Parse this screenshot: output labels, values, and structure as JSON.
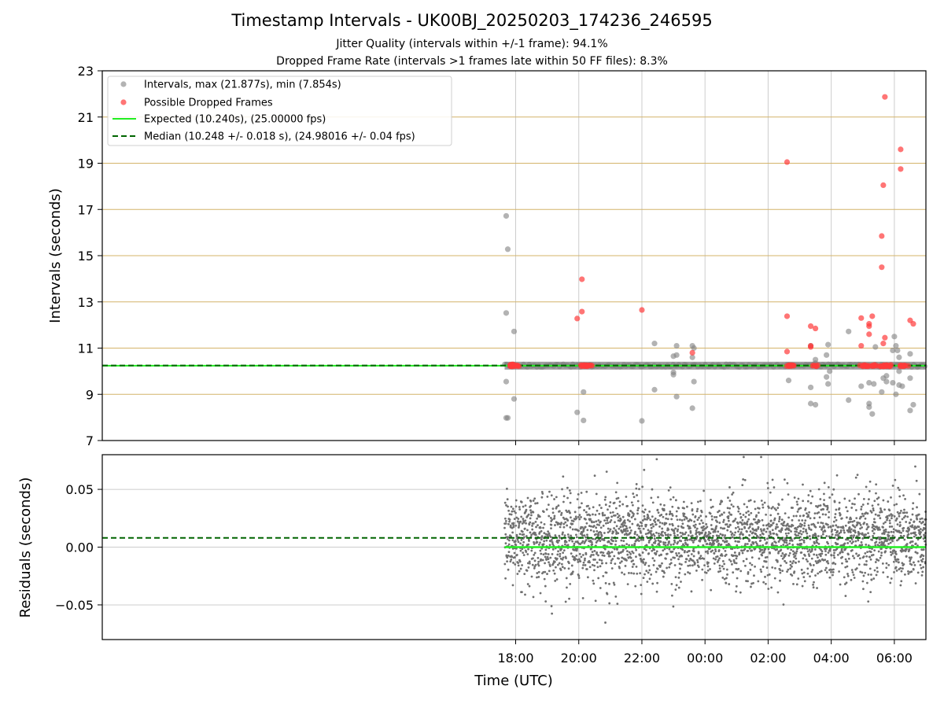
{
  "figure": {
    "title": "Timestamp Intervals - UK00BJ_20250203_174236_246595",
    "subtitle_1": "Jitter Quality (intervals within +/-1 frame): 94.1%",
    "subtitle_2": "Dropped Frame Rate (intervals >1 frames late within 50 FF files): 8.3%"
  },
  "chart_data": [
    {
      "type": "scatter",
      "panel": "intervals",
      "ylabel": "Intervals (seconds)",
      "x_unit": "hours relative to 00:00 UTC (negative = previous evening)",
      "xlim": [
        -19.1,
        7.0
      ],
      "ylim": [
        7,
        23
      ],
      "y_ticks": [
        7,
        9,
        11,
        13,
        15,
        17,
        19,
        21,
        23
      ],
      "grid": true,
      "legend_position": "top-left",
      "colors": {
        "intervals": "#808080",
        "dropped": "#ff3b3b",
        "expected": "#22ee22",
        "median": "#006400",
        "hgrid": "#d4b46a",
        "vgrid": "#cccccc"
      },
      "legend": [
        "Intervals, max (21.877s), min (7.854s)",
        "Possible Dropped Frames",
        "Expected (10.240s), (25.00000 fps)",
        "Median (10.248 +/- 0.018 s), (24.98016 +/- 0.04 fps)"
      ],
      "expected_line": 10.24,
      "median_line": 10.248,
      "baseline_band": {
        "x_start": -6.35,
        "x_end": 7.0,
        "y": 10.24
      },
      "series": [
        {
          "name": "Intervals, max (21.877s), min (7.854s)",
          "points": [
            [
              -6.3,
              16.72
            ],
            [
              -6.25,
              15.28
            ],
            [
              -6.3,
              12.52
            ],
            [
              -6.3,
              9.55
            ],
            [
              -6.3,
              7.98
            ],
            [
              -6.25,
              7.98
            ],
            [
              -6.05,
              11.72
            ],
            [
              -6.05,
              8.8
            ],
            [
              -4.05,
              8.22
            ],
            [
              -3.85,
              9.1
            ],
            [
              -3.85,
              7.87
            ],
            [
              -2.0,
              7.85
            ],
            [
              -1.6,
              11.2
            ],
            [
              -1.6,
              9.2
            ],
            [
              -1.0,
              10.65
            ],
            [
              -1.0,
              9.85
            ],
            [
              -1.0,
              9.95
            ],
            [
              -0.9,
              11.1
            ],
            [
              -0.9,
              10.7
            ],
            [
              -0.9,
              8.9
            ],
            [
              -0.4,
              11.1
            ],
            [
              -0.35,
              11.0
            ],
            [
              -0.4,
              10.6
            ],
            [
              -0.4,
              8.4
            ],
            [
              -0.35,
              9.55
            ],
            [
              2.65,
              9.6
            ],
            [
              3.35,
              9.3
            ],
            [
              3.35,
              8.6
            ],
            [
              3.35,
              11.1
            ],
            [
              3.5,
              8.55
            ],
            [
              3.5,
              10.35
            ],
            [
              3.5,
              10.5
            ],
            [
              3.85,
              10.7
            ],
            [
              3.85,
              9.75
            ],
            [
              3.9,
              11.15
            ],
            [
              3.9,
              9.45
            ],
            [
              3.95,
              10.0
            ],
            [
              4.55,
              11.72
            ],
            [
              4.55,
              8.75
            ],
            [
              4.95,
              9.35
            ],
            [
              5.2,
              9.5
            ],
            [
              5.2,
              8.6
            ],
            [
              5.2,
              8.45
            ],
            [
              5.3,
              8.15
            ],
            [
              5.35,
              9.45
            ],
            [
              5.4,
              11.05
            ],
            [
              5.6,
              9.1
            ],
            [
              5.65,
              9.7
            ],
            [
              5.75,
              9.55
            ],
            [
              5.75,
              9.8
            ],
            [
              5.95,
              10.9
            ],
            [
              5.95,
              9.5
            ],
            [
              6.0,
              11.5
            ],
            [
              6.05,
              11.1
            ],
            [
              6.05,
              9.0
            ],
            [
              6.1,
              10.9
            ],
            [
              6.15,
              10.6
            ],
            [
              6.15,
              10.0
            ],
            [
              6.15,
              9.4
            ],
            [
              6.25,
              9.35
            ],
            [
              6.5,
              10.75
            ],
            [
              6.5,
              9.7
            ],
            [
              6.5,
              8.3
            ],
            [
              6.6,
              8.55
            ]
          ]
        },
        {
          "name": "Possible Dropped Frames",
          "points": [
            [
              -6.15,
              10.24
            ],
            [
              -6.05,
              10.24
            ],
            [
              -5.95,
              10.24
            ],
            [
              -6.1,
              10.28
            ],
            [
              -4.05,
              12.28
            ],
            [
              -3.9,
              13.98
            ],
            [
              -3.9,
              12.58
            ],
            [
              -3.85,
              10.24
            ],
            [
              -3.75,
              10.24
            ],
            [
              -3.65,
              10.24
            ],
            [
              -2.0,
              12.65
            ],
            [
              -0.4,
              10.8
            ],
            [
              2.6,
              19.05
            ],
            [
              2.6,
              12.38
            ],
            [
              2.6,
              10.85
            ],
            [
              2.65,
              10.24
            ],
            [
              2.75,
              10.24
            ],
            [
              3.35,
              11.95
            ],
            [
              3.35,
              11.1
            ],
            [
              3.35,
              11.05
            ],
            [
              3.5,
              11.85
            ],
            [
              3.5,
              10.24
            ],
            [
              4.95,
              12.3
            ],
            [
              4.95,
              11.1
            ],
            [
              5.0,
              10.24
            ],
            [
              5.1,
              10.24
            ],
            [
              5.2,
              12.05
            ],
            [
              5.2,
              11.95
            ],
            [
              5.2,
              11.6
            ],
            [
              5.3,
              12.38
            ],
            [
              5.3,
              10.24
            ],
            [
              5.4,
              10.24
            ],
            [
              5.6,
              15.85
            ],
            [
              5.6,
              14.5
            ],
            [
              5.65,
              18.05
            ],
            [
              5.65,
              11.2
            ],
            [
              5.7,
              21.87
            ],
            [
              5.7,
              11.45
            ],
            [
              5.65,
              10.24
            ],
            [
              5.75,
              10.24
            ],
            [
              5.85,
              10.24
            ],
            [
              6.2,
              19.6
            ],
            [
              6.2,
              18.75
            ],
            [
              6.25,
              10.24
            ],
            [
              6.35,
              10.24
            ],
            [
              6.5,
              12.2
            ],
            [
              6.6,
              12.05
            ]
          ]
        }
      ]
    },
    {
      "type": "scatter",
      "panel": "residuals",
      "ylabel": "Residuals (seconds)",
      "xlabel": "Time (UTC)",
      "xlim": [
        -19.1,
        7.0
      ],
      "ylim": [
        -0.08,
        0.08
      ],
      "y_ticks": [
        -0.05,
        0.0,
        0.05
      ],
      "y_tick_labels": [
        "−0.05",
        "0.00",
        "0.05"
      ],
      "x_ticks": [
        -6,
        -4,
        -2,
        0,
        2,
        4,
        6
      ],
      "x_tick_labels": [
        "18:00",
        "20:00",
        "22:00",
        "00:00",
        "02:00",
        "04:00",
        "06:00"
      ],
      "grid": true,
      "zero_line": 0.0,
      "median_offset_line": 0.008,
      "scatter_range": {
        "x_start": -6.35,
        "x_end": 7.0
      },
      "point_color": "#707070"
    }
  ]
}
